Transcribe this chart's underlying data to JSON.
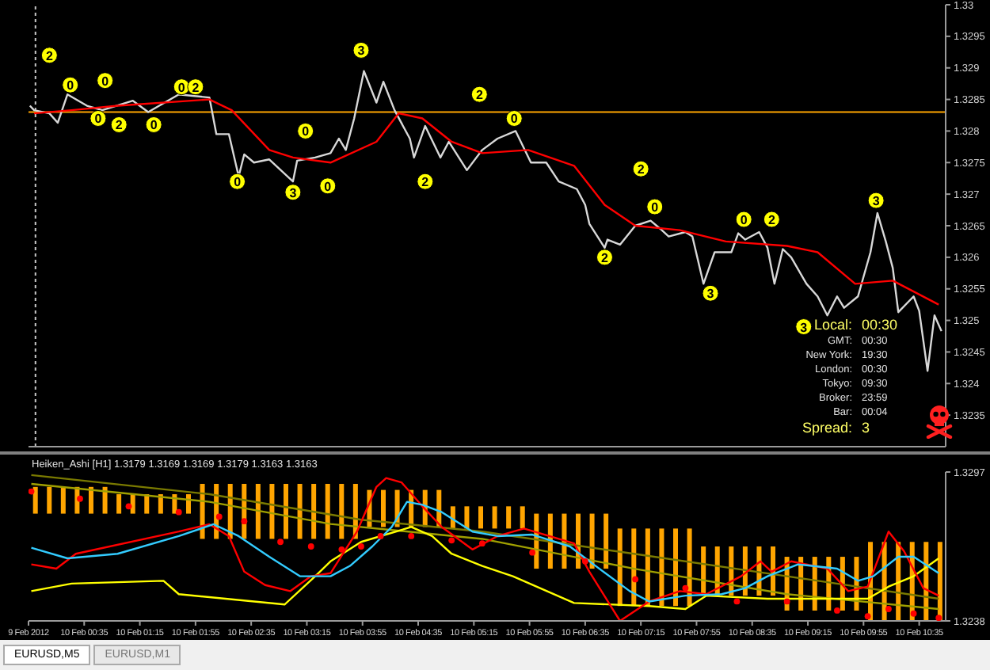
{
  "chart_data": [
    {
      "type": "line",
      "xlim": [
        "2012-02-09T23:55",
        "2012-02-10T10:54"
      ],
      "ylim": [
        1.323,
        1.33
      ],
      "yticks": [
        1.3235,
        1.324,
        1.3245,
        1.325,
        1.3255,
        1.326,
        1.3265,
        1.327,
        1.3275,
        1.328,
        1.3285,
        1.329,
        1.3295,
        1.33
      ],
      "tick_labels": "y",
      "legend": false,
      "marker": "none",
      "line_style": "solid",
      "series": [
        {
          "color": "#d8d8d8",
          "x": [
            "2012-02-09T23:56",
            "2012-02-09T23:59",
            "2012-02-10T00:10",
            "2012-02-10T00:16",
            "2012-02-10T00:23",
            "2012-02-10T00:37",
            "2012-02-10T00:48",
            "2012-02-10T01:10",
            "2012-02-10T01:21",
            "2012-02-10T01:43",
            "2012-02-10T02:05",
            "2012-02-10T02:10",
            "2012-02-10T02:19",
            "2012-02-10T02:26",
            "2012-02-10T02:30",
            "2012-02-10T02:37",
            "2012-02-10T02:48",
            "2012-02-10T03:05",
            "2012-02-10T03:08",
            "2012-02-10T03:21",
            "2012-02-10T03:32",
            "2012-02-10T03:38",
            "2012-02-10T03:43",
            "2012-02-10T03:49",
            "2012-02-10T03:56",
            "2012-02-10T04:05",
            "2012-02-10T04:10",
            "2012-02-10T04:18",
            "2012-02-10T04:29",
            "2012-02-10T04:32",
            "2012-02-10T04:40",
            "2012-02-10T04:51",
            "2012-02-10T04:57",
            "2012-02-10T05:10",
            "2012-02-10T05:21",
            "2012-02-10T05:32",
            "2012-02-10T05:45",
            "2012-02-10T05:56",
            "2012-02-10T06:07",
            "2012-02-10T06:16",
            "2012-02-10T06:29",
            "2012-02-10T06:35",
            "2012-02-10T06:38",
            "2012-02-10T06:49",
            "2012-02-10T06:51",
            "2012-02-10T07:00",
            "2012-02-10T07:11",
            "2012-02-10T07:22",
            "2012-02-10T07:29",
            "2012-02-10T07:35",
            "2012-02-10T07:47",
            "2012-02-10T07:52",
            "2012-02-10T08:00",
            "2012-02-10T08:08",
            "2012-02-10T08:20",
            "2012-02-10T08:25",
            "2012-02-10T08:30",
            "2012-02-10T08:40",
            "2012-02-10T08:46",
            "2012-02-10T08:51",
            "2012-02-10T08:57",
            "2012-02-10T09:03",
            "2012-02-10T09:14",
            "2012-02-10T09:22",
            "2012-02-10T09:29",
            "2012-02-10T09:36",
            "2012-02-10T09:41",
            "2012-02-10T09:51",
            "2012-02-10T10:00",
            "2012-02-10T10:05",
            "2012-02-10T10:11",
            "2012-02-10T10:16",
            "2012-02-10T10:20",
            "2012-02-10T10:31",
            "2012-02-10T10:35",
            "2012-02-10T10:41",
            "2012-02-10T10:46",
            "2012-02-10T10:51"
          ],
          "values": [
            1.3284,
            1.32833,
            1.32828,
            1.32813,
            1.32858,
            1.3284,
            1.32833,
            1.32848,
            1.3283,
            1.32858,
            1.32853,
            1.32795,
            1.32795,
            1.32728,
            1.32763,
            1.3275,
            1.32755,
            1.3272,
            1.32753,
            1.32758,
            1.32765,
            1.32788,
            1.3277,
            1.3282,
            1.32895,
            1.32845,
            1.32878,
            1.32833,
            1.32788,
            1.32758,
            1.32808,
            1.32758,
            1.32783,
            1.32738,
            1.3277,
            1.32788,
            1.328,
            1.3275,
            1.3275,
            1.3272,
            1.32708,
            1.32683,
            1.32653,
            1.32615,
            1.32628,
            1.3262,
            1.3265,
            1.32658,
            1.32645,
            1.32633,
            1.3264,
            1.32633,
            1.32558,
            1.32608,
            1.32608,
            1.32638,
            1.32628,
            1.3264,
            1.32615,
            1.32558,
            1.32613,
            1.326,
            1.32558,
            1.32538,
            1.32508,
            1.32538,
            1.3252,
            1.32538,
            1.32608,
            1.3267,
            1.32625,
            1.32583,
            1.32513,
            1.32538,
            1.32515,
            1.3242,
            1.32508,
            1.32483
          ]
        },
        {
          "color": "#ff0000",
          "x": [
            "2012-02-09T23:59",
            "2012-02-10T00:26",
            "2012-02-10T00:59",
            "2012-02-10T02:05",
            "2012-02-10T02:21",
            "2012-02-10T02:48",
            "2012-02-10T03:05",
            "2012-02-10T03:32",
            "2012-02-10T04:05",
            "2012-02-10T04:21",
            "2012-02-10T04:38",
            "2012-02-10T04:59",
            "2012-02-10T05:21",
            "2012-02-10T05:54",
            "2012-02-10T06:27",
            "2012-02-10T06:49",
            "2012-02-10T07:11",
            "2012-02-10T07:43",
            "2012-02-10T08:16",
            "2012-02-10T09:00",
            "2012-02-10T09:22",
            "2012-02-10T09:49",
            "2012-02-10T10:16",
            "2012-02-10T10:49"
          ],
          "values": [
            1.32828,
            1.32833,
            1.3284,
            1.3285,
            1.32833,
            1.3277,
            1.32758,
            1.3275,
            1.32783,
            1.32828,
            1.3282,
            1.32783,
            1.32765,
            1.3277,
            1.32745,
            1.32683,
            1.3265,
            1.32643,
            1.32625,
            1.32618,
            1.32608,
            1.32558,
            1.32563,
            1.32525
          ]
        }
      ],
      "ref_lines": [
        {
          "axis": "y",
          "value": 1.3283,
          "color": "#ffa500",
          "line_style": "solid"
        },
        {
          "axis": "x",
          "value": "2012-02-10T00:00",
          "color": "#c8c8c8",
          "line_style": "dotted"
        }
      ],
      "annotations": [
        {
          "text": "2",
          "x": "2012-02-10T00:10",
          "y": 1.3292
        },
        {
          "text": "0",
          "x": "2012-02-10T00:25",
          "y": 1.32873
        },
        {
          "text": "0",
          "x": "2012-02-10T00:50",
          "y": 1.3288
        },
        {
          "text": "0",
          "x": "2012-02-10T00:45",
          "y": 1.3282
        },
        {
          "text": "2",
          "x": "2012-02-10T01:00",
          "y": 1.3281
        },
        {
          "text": "0",
          "x": "2012-02-10T01:25",
          "y": 1.3281
        },
        {
          "text": "0",
          "x": "2012-02-10T01:45",
          "y": 1.3287
        },
        {
          "text": "2",
          "x": "2012-02-10T01:55",
          "y": 1.3287
        },
        {
          "text": "0",
          "x": "2012-02-10T02:25",
          "y": 1.3272
        },
        {
          "text": "3",
          "x": "2012-02-10T03:05",
          "y": 1.32703
        },
        {
          "text": "0",
          "x": "2012-02-10T03:14",
          "y": 1.328
        },
        {
          "text": "0",
          "x": "2012-02-10T03:30",
          "y": 1.32713
        },
        {
          "text": "3",
          "x": "2012-02-10T03:54",
          "y": 1.32928
        },
        {
          "text": "2",
          "x": "2012-02-10T04:40",
          "y": 1.3272
        },
        {
          "text": "2",
          "x": "2012-02-10T05:19",
          "y": 1.32858
        },
        {
          "text": "0",
          "x": "2012-02-10T05:44",
          "y": 1.3282
        },
        {
          "text": "2",
          "x": "2012-02-10T06:49",
          "y": 1.326
        },
        {
          "text": "2",
          "x": "2012-02-10T07:15",
          "y": 1.3274
        },
        {
          "text": "0",
          "x": "2012-02-10T07:25",
          "y": 1.3268
        },
        {
          "text": "3",
          "x": "2012-02-10T08:05",
          "y": 1.32543
        },
        {
          "text": "0",
          "x": "2012-02-10T08:29",
          "y": 1.3266
        },
        {
          "text": "2",
          "x": "2012-02-10T08:49",
          "y": 1.3266
        },
        {
          "text": "3",
          "x": "2012-02-10T09:12",
          "y": 1.3249
        },
        {
          "text": "3",
          "x": "2012-02-10T10:04",
          "y": 1.3269
        },
        "Local: 00:30",
        "GMT: 00:30",
        "New York: 19:30",
        "London: 00:30",
        "Tokyo: 09:30",
        "Broker: 23:59",
        "Bar: 00:04",
        "Spread: 3"
      ]
    },
    {
      "type": "line",
      "title": "Heiken_Ashi [H1] 1.3179 1.3169 1.3169 1.3179 1.3163 1.3163",
      "xlim": [
        "2012-02-09T23:55",
        "2012-02-10T10:54"
      ],
      "xticks": [
        {
          "value": "2012-02-09T23:55",
          "label": "9 Feb 2012"
        },
        {
          "value": "2012-02-10T00:35",
          "label": "10 Feb 00:35"
        },
        {
          "value": "2012-02-10T01:15",
          "label": "10 Feb 01:15"
        },
        {
          "value": "2012-02-10T01:55",
          "label": "10 Feb 01:55"
        },
        {
          "value": "2012-02-10T02:35",
          "label": "10 Feb 02:35"
        },
        {
          "value": "2012-02-10T03:15",
          "label": "10 Feb 03:15"
        },
        {
          "value": "2012-02-10T03:55",
          "label": "10 Feb 03:55"
        },
        {
          "value": "2012-02-10T04:35",
          "label": "10 Feb 04:35"
        },
        {
          "value": "2012-02-10T05:15",
          "label": "10 Feb 05:15"
        },
        {
          "value": "2012-02-10T05:55",
          "label": "10 Feb 05:55"
        },
        {
          "value": "2012-02-10T06:35",
          "label": "10 Feb 06:35"
        },
        {
          "value": "2012-02-10T07:15",
          "label": "10 Feb 07:15"
        },
        {
          "value": "2012-02-10T07:55",
          "label": "10 Feb 07:55"
        },
        {
          "value": "2012-02-10T08:35",
          "label": "10 Feb 08:35"
        },
        {
          "value": "2012-02-10T09:15",
          "label": "10 Feb 09:15"
        },
        {
          "value": "2012-02-10T09:55",
          "label": "10 Feb 09:55"
        },
        {
          "value": "2012-02-10T10:35",
          "label": "10 Feb 10:35"
        }
      ],
      "ylim": [
        1.3238,
        1.3297
      ],
      "yticks": [
        1.3238,
        1.3297
      ],
      "legend": false,
      "marker": "none",
      "line_style": "solid",
      "series": [
        {
          "type": "bar",
          "color": "#ffa500",
          "x": [
            "2012-02-10T00:00",
            "2012-02-10T00:10",
            "2012-02-10T00:20",
            "2012-02-10T00:30",
            "2012-02-10T00:40",
            "2012-02-10T00:50",
            "2012-02-10T01:00",
            "2012-02-10T01:10",
            "2012-02-10T01:20",
            "2012-02-10T01:30",
            "2012-02-10T01:40",
            "2012-02-10T01:50",
            "2012-02-10T02:00",
            "2012-02-10T02:10",
            "2012-02-10T02:20",
            "2012-02-10T02:30",
            "2012-02-10T02:40",
            "2012-02-10T02:50",
            "2012-02-10T03:00",
            "2012-02-10T03:10",
            "2012-02-10T03:20",
            "2012-02-10T03:30",
            "2012-02-10T03:40",
            "2012-02-10T03:50",
            "2012-02-10T04:00",
            "2012-02-10T04:10",
            "2012-02-10T04:20",
            "2012-02-10T04:30",
            "2012-02-10T04:40",
            "2012-02-10T04:50",
            "2012-02-10T05:00",
            "2012-02-10T05:10",
            "2012-02-10T05:20",
            "2012-02-10T05:30",
            "2012-02-10T05:40",
            "2012-02-10T05:50",
            "2012-02-10T06:00",
            "2012-02-10T06:10",
            "2012-02-10T06:20",
            "2012-02-10T06:30",
            "2012-02-10T06:40",
            "2012-02-10T06:50",
            "2012-02-10T07:00",
            "2012-02-10T07:10",
            "2012-02-10T07:20",
            "2012-02-10T07:30",
            "2012-02-10T07:40",
            "2012-02-10T07:50",
            "2012-02-10T08:00",
            "2012-02-10T08:10",
            "2012-02-10T08:20",
            "2012-02-10T08:30",
            "2012-02-10T08:40",
            "2012-02-10T08:50",
            "2012-02-10T09:00",
            "2012-02-10T09:10",
            "2012-02-10T09:20",
            "2012-02-10T09:30",
            "2012-02-10T09:40",
            "2012-02-10T09:50",
            "2012-02-10T10:00",
            "2012-02-10T10:10",
            "2012-02-10T10:20",
            "2012-02-10T10:30",
            "2012-02-10T10:40",
            "2012-02-10T10:50"
          ],
          "base": [
            1.32805,
            1.32805,
            1.32805,
            1.32805,
            1.32805,
            1.32805,
            1.32805,
            1.32805,
            1.32805,
            1.32805,
            1.32805,
            1.32805,
            1.32705,
            1.32705,
            1.32705,
            1.32705,
            1.32705,
            1.32705,
            1.32705,
            1.32705,
            1.32705,
            1.32705,
            1.32705,
            1.32705,
            1.32752,
            1.32752,
            1.32752,
            1.32752,
            1.32752,
            1.32752,
            1.32746,
            1.32746,
            1.32746,
            1.32746,
            1.32746,
            1.32746,
            1.32587,
            1.32587,
            1.32587,
            1.32587,
            1.32587,
            1.32587,
            1.32439,
            1.32439,
            1.32439,
            1.32439,
            1.32439,
            1.32439,
            1.3248,
            1.3248,
            1.3248,
            1.3248,
            1.3248,
            1.3248,
            1.32421,
            1.32421,
            1.32421,
            1.32421,
            1.32421,
            1.32421,
            1.3238,
            1.3238,
            1.3238,
            1.3238,
            1.3238,
            1.3238
          ],
          "values": [
            0.00106,
            0.00106,
            0.00106,
            0.00106,
            0.00106,
            0.00106,
            0.00077,
            0.00077,
            0.00077,
            0.00077,
            0.00077,
            0.00077,
            0.00218,
            0.00218,
            0.00218,
            0.00218,
            0.00218,
            0.00218,
            0.00218,
            0.00218,
            0.00218,
            0.00218,
            0.00218,
            0.00218,
            0.00147,
            0.00147,
            0.00147,
            0.00147,
            0.00147,
            0.00147,
            0.00088,
            0.00088,
            0.00088,
            0.00088,
            0.00088,
            0.00088,
            0.00218,
            0.00218,
            0.00218,
            0.00218,
            0.00218,
            0.00218,
            0.00307,
            0.00307,
            0.00307,
            0.00307,
            0.00307,
            0.00307,
            0.00195,
            0.00195,
            0.00195,
            0.00195,
            0.00195,
            0.00195,
            0.00213,
            0.00213,
            0.00213,
            0.00213,
            0.00213,
            0.00213,
            0.00313,
            0.00313,
            0.00313,
            0.00313,
            0.00313,
            0.00313
          ]
        },
        {
          "color": "#a0a000",
          "x": [
            "2012-02-09T23:57",
            "2012-02-10T02:05",
            "2012-02-10T03:32",
            "2012-02-10T05:21",
            "2012-02-10T07:11",
            "2012-02-10T09:00",
            "2012-02-10T10:49"
          ],
          "values": [
            1.32923,
            1.32852,
            1.32764,
            1.32705,
            1.32586,
            1.32486,
            1.32427
          ]
        },
        {
          "color": "#7a7a00",
          "x": [
            "2012-02-09T23:57",
            "2012-02-10T02:05",
            "2012-02-10T03:54",
            "2012-02-10T05:21",
            "2012-02-10T07:11",
            "2012-02-10T09:00",
            "2012-02-10T10:49"
          ],
          "values": [
            1.32958,
            1.32882,
            1.32781,
            1.32734,
            1.32645,
            1.32557,
            1.32468
          ]
        },
        {
          "color": "#ffff00",
          "x": [
            "2012-02-09T23:57",
            "2012-02-10T00:26",
            "2012-02-10T01:32",
            "2012-02-10T01:43",
            "2012-02-10T02:59",
            "2012-02-10T03:21",
            "2012-02-10T03:32",
            "2012-02-10T03:54",
            "2012-02-10T04:30",
            "2012-02-10T04:45",
            "2012-02-10T04:59",
            "2012-02-10T05:21",
            "2012-02-10T05:43",
            "2012-02-10T06:27",
            "2012-02-10T07:21",
            "2012-02-10T07:47",
            "2012-02-10T08:02",
            "2012-02-10T08:46",
            "2012-02-10T09:58",
            "2012-02-10T10:13",
            "2012-02-10T10:31",
            "2012-02-10T10:49"
          ],
          "values": [
            1.32498,
            1.32528,
            1.32539,
            1.32486,
            1.32445,
            1.32557,
            1.32616,
            1.32693,
            1.32752,
            1.32716,
            1.32646,
            1.32598,
            1.32557,
            1.32451,
            1.32439,
            1.32427,
            1.3248,
            1.32468,
            1.32468,
            1.32516,
            1.32557,
            1.32628
          ]
        },
        {
          "color": "#ff0000",
          "x": [
            "2012-02-09T23:57",
            "2012-02-10T00:15",
            "2012-02-10T00:29",
            "2012-02-10T01:43",
            "2012-02-10T02:05",
            "2012-02-10T02:19",
            "2012-02-10T02:30",
            "2012-02-10T02:45",
            "2012-02-10T03:03",
            "2012-02-10T03:18",
            "2012-02-10T03:32",
            "2012-02-10T03:51",
            "2012-02-10T04:05",
            "2012-02-10T04:12",
            "2012-02-10T04:23",
            "2012-02-10T04:38",
            "2012-02-10T04:52",
            "2012-02-10T05:14",
            "2012-02-10T05:32",
            "2012-02-10T05:51",
            "2012-02-10T06:27",
            "2012-02-10T06:38",
            "2012-02-10T07:00",
            "2012-02-10T07:21",
            "2012-02-10T07:43",
            "2012-02-10T08:02",
            "2012-02-10T08:27",
            "2012-02-10T08:41",
            "2012-02-10T08:49",
            "2012-02-10T09:03",
            "2012-02-10T09:29",
            "2012-02-10T09:44",
            "2012-02-10T09:58",
            "2012-02-10T10:13",
            "2012-02-10T10:24",
            "2012-02-10T10:38",
            "2012-02-10T10:49"
          ],
          "values": [
            1.32604,
            1.32587,
            1.32646,
            1.32734,
            1.32763,
            1.32716,
            1.32575,
            1.32522,
            1.32498,
            1.32557,
            1.32569,
            1.32734,
            1.32911,
            1.32946,
            1.32929,
            1.32834,
            1.32752,
            1.32663,
            1.32716,
            1.32746,
            1.32687,
            1.32575,
            1.3238,
            1.32457,
            1.32498,
            1.32486,
            1.32557,
            1.32616,
            1.32575,
            1.32616,
            1.32587,
            1.32498,
            1.32516,
            1.32734,
            1.32657,
            1.3251,
            1.3248
          ]
        },
        {
          "color": "#33ccff",
          "x": [
            "2012-02-09T23:57",
            "2012-02-10T00:23",
            "2012-02-10T00:59",
            "2012-02-10T01:43",
            "2012-02-10T02:08",
            "2012-02-10T02:26",
            "2012-02-10T02:48",
            "2012-02-10T03:10",
            "2012-02-10T03:32",
            "2012-02-10T03:46",
            "2012-02-10T04:02",
            "2012-02-10T04:16",
            "2012-02-10T04:27",
            "2012-02-10T04:38",
            "2012-02-10T04:52",
            "2012-02-10T05:14",
            "2012-02-10T05:32",
            "2012-02-10T05:57",
            "2012-02-10T06:24",
            "2012-02-10T06:41",
            "2012-02-10T07:07",
            "2012-02-10T07:21",
            "2012-02-10T07:47",
            "2012-02-10T08:13",
            "2012-02-10T08:30",
            "2012-02-10T08:46",
            "2012-02-10T09:08",
            "2012-02-10T09:36",
            "2012-02-10T09:51",
            "2012-02-10T10:02",
            "2012-02-10T10:20",
            "2012-02-10T10:31",
            "2012-02-10T10:49"
          ],
          "values": [
            1.3267,
            1.32628,
            1.32646,
            1.32716,
            1.32763,
            1.32716,
            1.32634,
            1.32557,
            1.32557,
            1.32598,
            1.32675,
            1.32752,
            1.32852,
            1.3284,
            1.32811,
            1.32734,
            1.32716,
            1.32722,
            1.32675,
            1.32604,
            1.32498,
            1.32457,
            1.3248,
            1.32486,
            1.3251,
            1.32557,
            1.32604,
            1.32587,
            1.32539,
            1.32557,
            1.32634,
            1.32634,
            1.32569
          ]
        },
        {
          "type": "scatter",
          "color": "#ff0000",
          "marker": "circle",
          "x": [
            "2012-02-09T23:57",
            "2012-02-10T00:32",
            "2012-02-10T01:07",
            "2012-02-10T01:43",
            "2012-02-10T02:12",
            "2012-02-10T02:30",
            "2012-02-10T02:56",
            "2012-02-10T03:18",
            "2012-02-10T03:40",
            "2012-02-10T03:54",
            "2012-02-10T04:08",
            "2012-02-10T04:30",
            "2012-02-10T04:59",
            "2012-02-10T05:21",
            "2012-02-10T05:57",
            "2012-02-10T06:35",
            "2012-02-10T07:11",
            "2012-02-10T07:47",
            "2012-02-10T08:24",
            "2012-02-10T09:00",
            "2012-02-10T09:36",
            "2012-02-10T09:58",
            "2012-02-10T10:13",
            "2012-02-10T10:31",
            "2012-02-10T10:49"
          ],
          "values": [
            1.32893,
            1.32864,
            1.32834,
            1.32811,
            1.32793,
            1.32775,
            1.32693,
            1.32675,
            1.32663,
            1.32675,
            1.32716,
            1.32716,
            1.32699,
            1.32687,
            1.32651,
            1.32616,
            1.32545,
            1.3251,
            1.32457,
            1.32457,
            1.32421,
            1.32398,
            1.32427,
            1.32409,
            1.32392
          ]
        }
      ],
      "annotations": [
        "EURUSD,M5",
        "EURUSD,M1"
      ]
    }
  ]
}
